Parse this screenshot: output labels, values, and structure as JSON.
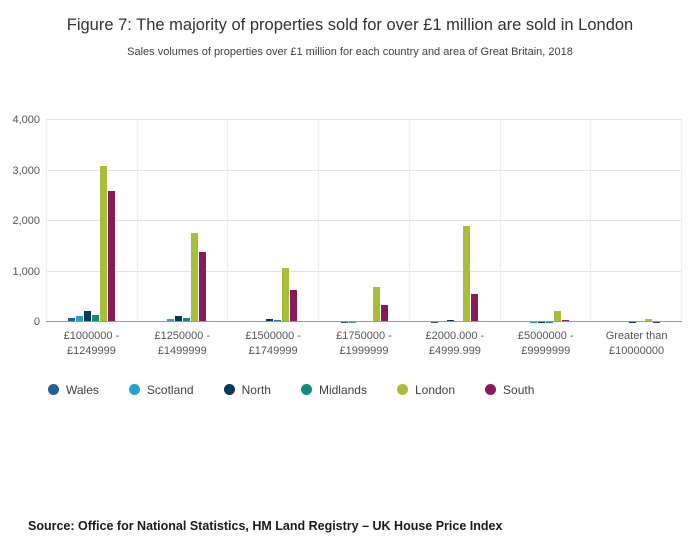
{
  "header": {
    "title": "Figure 7: The majority of properties sold for over £1 million are sold in London",
    "subtitle": "Sales volumes of properties over £1 million for each country and area of Great Britain, 2018"
  },
  "source": "Source: Office for National Statistics, HM Land Registry – UK House Price Index",
  "chart_data": {
    "type": "bar",
    "title": "Figure 7: The majority of properties sold for over £1 million are sold in London",
    "subtitle": "Sales volumes of properties over £1 million for each country and area of Great Britain, 2018",
    "categories": [
      [
        "£1000000 -",
        "£1249999"
      ],
      [
        "£1250000 -",
        "£1499999"
      ],
      [
        "£1500000 -",
        "£1749999"
      ],
      [
        "£1750000 -",
        "£1999999"
      ],
      [
        "£2000.000 -",
        "£4999.999"
      ],
      [
        "£5000000 -",
        "£9999999"
      ],
      [
        "Greater than",
        "£10000000"
      ]
    ],
    "series": [
      {
        "name": "Wales",
        "color": "#206095",
        "values": [
          80,
          30,
          20,
          10,
          15,
          0,
          0
        ]
      },
      {
        "name": "Scotland",
        "color": "#27A0CC",
        "values": [
          120,
          60,
          30,
          15,
          25,
          5,
          0
        ]
      },
      {
        "name": "North",
        "color": "#003C57",
        "values": [
          220,
          120,
          60,
          30,
          45,
          10,
          5
        ]
      },
      {
        "name": "Midlands",
        "color": "#118C7B",
        "values": [
          140,
          80,
          40,
          20,
          25,
          5,
          0
        ]
      },
      {
        "name": "London",
        "color": "#A8BD3A",
        "values": [
          3100,
          1760,
          1070,
          700,
          1900,
          220,
          70
        ]
      },
      {
        "name": "South",
        "color": "#871A5B",
        "values": [
          2600,
          1400,
          640,
          350,
          560,
          40,
          10
        ]
      }
    ],
    "xlabel": "",
    "ylabel": "",
    "ylim": [
      0,
      4000
    ],
    "yticks": [
      0,
      1000,
      2000,
      3000,
      4000
    ],
    "ytick_labels": [
      "0",
      "1,000",
      "2,000",
      "3,000",
      "4,000"
    ],
    "grid": true,
    "legend_position": "bottom"
  }
}
